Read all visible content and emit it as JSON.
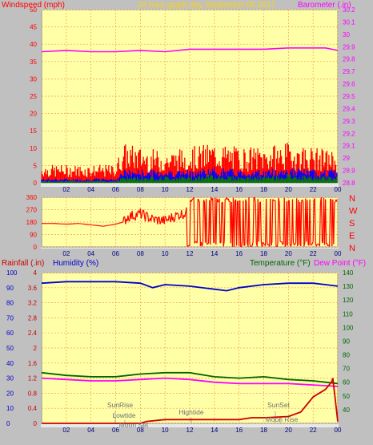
{
  "title": "24 hour graph day   September 06 2017",
  "colors": {
    "wind": "#ff0000",
    "gust": "#ff0000",
    "avg": "#0000ff",
    "low": "#008000",
    "baro": "#ff00ff",
    "dir": "#ff0000",
    "rain": "#cc0000",
    "humidity": "#0000cc",
    "temp": "#006600",
    "dew": "#ff00ff"
  },
  "x_ticks": [
    "02",
    "04",
    "06",
    "08",
    "10",
    "12",
    "14",
    "16",
    "18",
    "20",
    "22",
    "00"
  ],
  "chart_data": [
    {
      "type": "line",
      "panel": "wind_baro",
      "title": "24 hour graph day   September 06 2017",
      "ylabel_left": "Windspeed (mph)",
      "ylabel_right": "Barometer (.in)",
      "ylim_left": [
        0,
        50
      ],
      "ylim_right": [
        28.8,
        30.2
      ],
      "yticks_left": [
        "0",
        "5",
        "10",
        "15",
        "20",
        "25",
        "30",
        "35",
        "40",
        "45",
        "50"
      ],
      "yticks_right": [
        "28.8",
        "28.9",
        "29",
        "29.1",
        "29.2",
        "29.3",
        "29.4",
        "29.5",
        "29.6",
        "29.7",
        "29.8",
        "29.9",
        "30",
        "30.1",
        "30.2"
      ],
      "xlim": [
        0,
        24
      ],
      "barometer": {
        "x": [
          0,
          2,
          4,
          6,
          8,
          10,
          12,
          14,
          16,
          18,
          20,
          22,
          23,
          24
        ],
        "y": [
          29.86,
          29.87,
          29.86,
          29.86,
          29.87,
          29.86,
          29.88,
          29.88,
          29.88,
          29.88,
          29.89,
          29.89,
          29.89,
          29.87
        ]
      },
      "wind_profile": {
        "x": [
          0,
          6,
          6.6,
          8,
          10,
          12,
          14,
          16,
          18,
          20,
          22,
          24
        ],
        "gust": [
          4,
          4,
          9,
          8,
          7,
          8,
          9,
          8,
          8,
          9,
          8,
          7
        ],
        "avg": [
          1,
          1,
          3,
          3,
          3,
          3,
          3.5,
          3,
          3,
          3.5,
          3,
          3
        ],
        "low": [
          0.5,
          0.5,
          1.5,
          1.5,
          1.5,
          1.5,
          2,
          1.5,
          1.5,
          2,
          1.5,
          1.5
        ]
      }
    },
    {
      "type": "line",
      "panel": "wind_direction",
      "ylabel_right": [
        "N",
        "W",
        "S",
        "E",
        "N"
      ],
      "ylim": [
        0,
        360
      ],
      "yticks": [
        "0",
        "90",
        "180",
        "270",
        "360"
      ],
      "xlim": [
        0,
        24
      ],
      "direction": {
        "x": [
          0,
          1,
          2,
          3,
          4,
          5,
          6,
          6.6,
          7,
          8,
          9,
          10,
          11,
          11.8,
          12,
          14,
          16,
          18,
          20,
          22,
          24
        ],
        "y": [
          170,
          170,
          165,
          170,
          160,
          150,
          165,
          180,
          220,
          240,
          200,
          190,
          230,
          250,
          180,
          200,
          190,
          210,
          200,
          190,
          200
        ]
      }
    },
    {
      "type": "line",
      "panel": "rain_hum_temp",
      "ylabel_left": "Rainfall (.in)",
      "ylabel_left2": "Humidity (%)",
      "ylabel_right": "Temperature (°F)",
      "ylabel_right2": "Dew Point (°F)",
      "yticks_rain": [
        "0",
        "0.4",
        "0.8",
        "1.2",
        "1.6",
        "2",
        "2.4",
        "2.8",
        "3.2",
        "3.6",
        "4"
      ],
      "yticks_hum": [
        "0",
        "10",
        "20",
        "30",
        "40",
        "50",
        "60",
        "70",
        "80",
        "90",
        "100"
      ],
      "yticks_temp": [
        "40",
        "50",
        "60",
        "70",
        "80",
        "90",
        "100",
        "110",
        "120",
        "130",
        "140"
      ],
      "ylim_rain": [
        0,
        4
      ],
      "ylim_hum": [
        0,
        100
      ],
      "ylim_temp": [
        30,
        140
      ],
      "xlim": [
        0,
        24
      ],
      "humidity": {
        "x": [
          0,
          2,
          4,
          6,
          8,
          9,
          10,
          12,
          14,
          15,
          16,
          18,
          20,
          22,
          23,
          24
        ],
        "y": [
          93,
          94,
          94,
          94,
          93,
          90,
          92,
          91,
          89,
          88,
          90,
          92,
          93,
          93,
          92,
          91
        ]
      },
      "temperature": {
        "x": [
          0,
          2,
          4,
          6,
          7,
          8,
          10,
          12,
          14,
          16,
          18,
          20,
          22,
          23,
          24
        ],
        "y": [
          67,
          65,
          64,
          64,
          65,
          66,
          67,
          67,
          64,
          63,
          64,
          62,
          61,
          60,
          59
        ]
      },
      "dew_point": {
        "x": [
          0,
          2,
          4,
          6,
          8,
          10,
          12,
          14,
          16,
          18,
          20,
          22,
          24
        ],
        "y": [
          63,
          62,
          61,
          61,
          62,
          63,
          62,
          60,
          59,
          59,
          59,
          58,
          57
        ]
      },
      "rain": {
        "x": [
          0,
          6,
          8,
          8.5,
          10,
          14,
          16,
          17,
          18,
          20,
          21,
          21.5,
          22,
          23,
          23.5,
          23.6,
          24
        ],
        "y": [
          0,
          0,
          0,
          0.05,
          0.1,
          0.1,
          0.1,
          0.15,
          0.15,
          0.18,
          0.3,
          0.5,
          0.7,
          0.9,
          1.1,
          1.2,
          0.05
        ]
      },
      "annotations": [
        "SunRise",
        "Lowtide",
        "Moon Set",
        "Hightide",
        "SunSet",
        "Moon Rise"
      ]
    }
  ]
}
